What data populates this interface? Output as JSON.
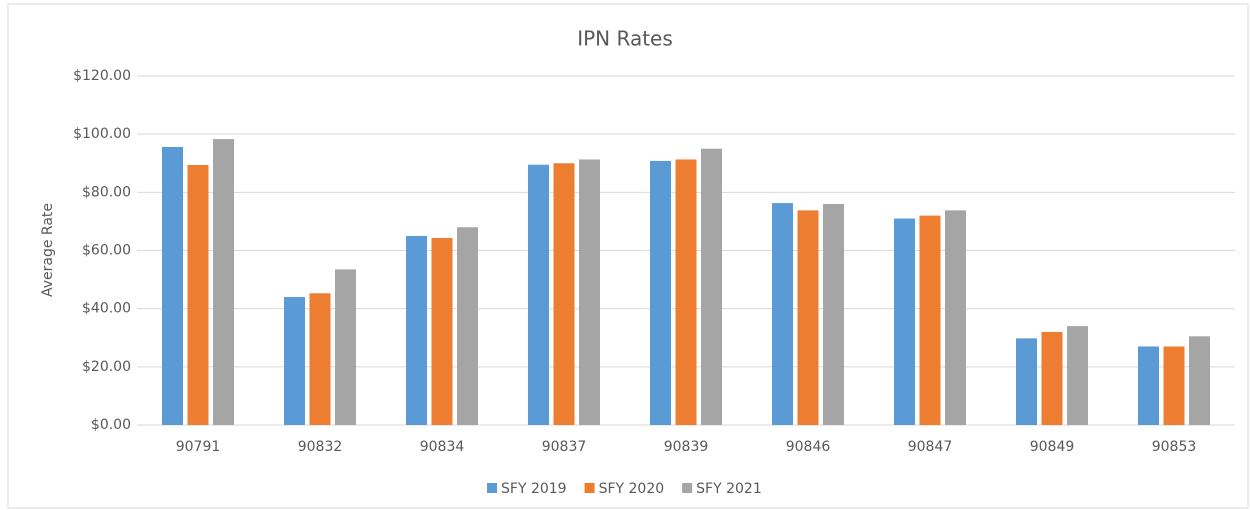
{
  "chart_data": {
    "type": "bar",
    "title": "IPN Rates",
    "y_label": "Average Rate",
    "categories": [
      "90791",
      "90832",
      "90834",
      "90837",
      "90839",
      "90846",
      "90847",
      "90849",
      "90853"
    ],
    "series": [
      {
        "name": "SFY 2019",
        "color": "#5b9bd5",
        "values": [
          95.6,
          44,
          65,
          89.5,
          90.8,
          76.3,
          71,
          29.8,
          27
        ]
      },
      {
        "name": "SFY 2020",
        "color": "#ed7d31",
        "values": [
          89.4,
          45.3,
          64.3,
          90,
          91.3,
          73.8,
          72,
          32,
          27
        ]
      },
      {
        "name": "SFY 2021",
        "color": "#a5a5a5",
        "values": [
          98.3,
          53.5,
          68,
          91.3,
          95,
          76,
          73.8,
          34,
          30.5
        ]
      }
    ],
    "ylim": [
      0,
      120
    ],
    "yticks": [
      {
        "value": 0,
        "label": "$0.00"
      },
      {
        "value": 20,
        "label": "$20.00"
      },
      {
        "value": 40,
        "label": "$40.00"
      },
      {
        "value": 60,
        "label": "$60.00"
      },
      {
        "value": 80,
        "label": "$80.00"
      },
      {
        "value": 100,
        "label": "$100.00"
      },
      {
        "value": 120,
        "label": "$120.00"
      }
    ],
    "grid": true,
    "legend": "bottom"
  }
}
